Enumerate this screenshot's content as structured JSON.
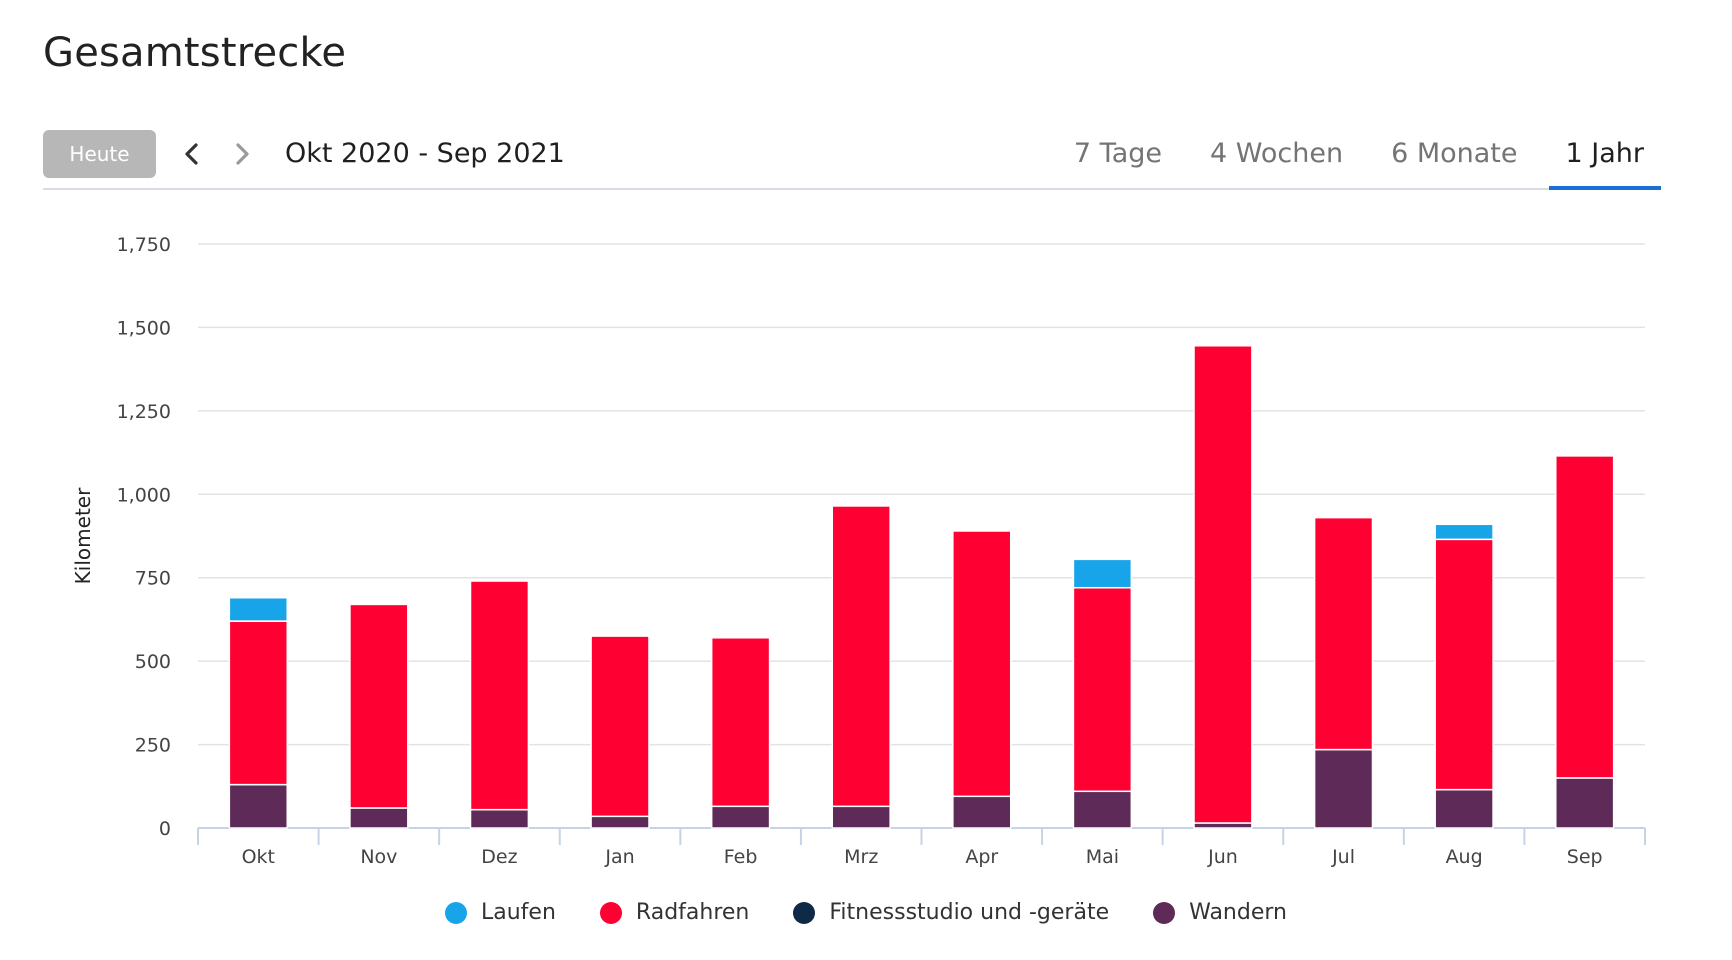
{
  "page": {
    "title": "Gesamtstrecke"
  },
  "toolbar": {
    "today_label": "Heute",
    "prev_icon": "chevron-left-icon",
    "next_icon": "chevron-right-icon",
    "date_range": "Okt 2020 - Sep 2021",
    "tabs": [
      {
        "label": "7 Tage",
        "active": false
      },
      {
        "label": "4 Wochen",
        "active": false
      },
      {
        "label": "6 Monate",
        "active": false
      },
      {
        "label": "1 Jahr",
        "active": true
      }
    ],
    "accent_color": "#1a6fd6"
  },
  "chart_data": {
    "type": "bar",
    "stacked": true,
    "categories": [
      "Okt",
      "Nov",
      "Dez",
      "Jan",
      "Feb",
      "Mrz",
      "Apr",
      "Mai",
      "Jun",
      "Jul",
      "Aug",
      "Sep"
    ],
    "ylabel": "Kilometer",
    "ylim": [
      0,
      1750
    ],
    "yticks": [
      0,
      250,
      500,
      750,
      1000,
      1250,
      1500,
      1750
    ],
    "ytick_labels": [
      "0",
      "250",
      "500",
      "750",
      "1,000",
      "1,250",
      "1,500",
      "1,750"
    ],
    "grid": true,
    "legend_position": "bottom",
    "series": [
      {
        "name": "Wandern",
        "color": "#5e2a57",
        "values": [
          130,
          60,
          55,
          35,
          65,
          65,
          95,
          110,
          15,
          235,
          115,
          150
        ]
      },
      {
        "name": "Fitnessstudio und -geräte",
        "color": "#0e2a47",
        "values": [
          0,
          0,
          0,
          0,
          0,
          0,
          0,
          0,
          0,
          0,
          0,
          0
        ]
      },
      {
        "name": "Radfahren",
        "color": "#ff0033",
        "values": [
          490,
          610,
          685,
          540,
          505,
          900,
          795,
          610,
          1430,
          695,
          750,
          965
        ]
      },
      {
        "name": "Laufen",
        "color": "#17a4e9",
        "values": [
          70,
          0,
          0,
          0,
          0,
          0,
          0,
          85,
          0,
          0,
          45,
          0
        ]
      }
    ],
    "legend_order": [
      "Laufen",
      "Radfahren",
      "Fitnessstudio und -geräte",
      "Wandern"
    ]
  }
}
